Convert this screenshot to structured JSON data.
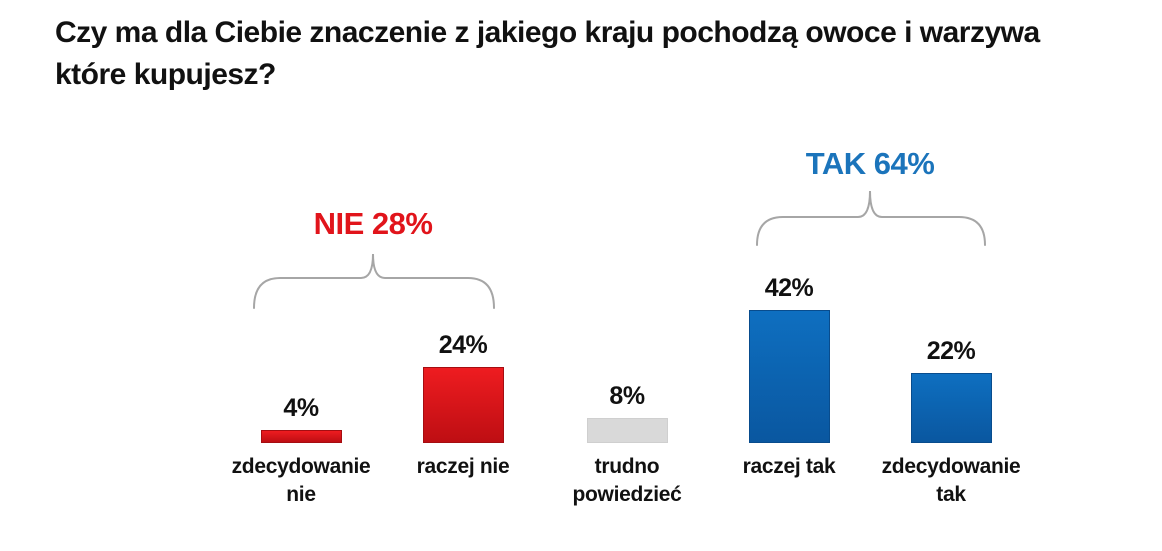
{
  "title": {
    "text": "Czy ma dla Ciebie znaczenie z jakiego kraju pochodzą owoce i warzywa które kupujesz?",
    "line1": "Czy ma dla Ciebie znaczenie z jakiego kraju pochodzą owoce i warzywa",
    "line2": "które kupujesz?"
  },
  "colors": {
    "title_text": "#111111",
    "label_text": "#111111",
    "no_accent": "#E1141B",
    "yes_accent": "#1B74BB",
    "red_bar_top": "#EE1C20",
    "red_bar_bottom": "#BE0E13",
    "red_bar_border": "#A50D11",
    "blue_bar_top": "#0E6FC0",
    "blue_bar_bottom": "#0A57A0",
    "blue_bar_border": "#084C8D",
    "gray_bar": "#D9D9D9",
    "gray_bar_border": "#CFCFCF",
    "brace": "#A6A6A6"
  },
  "chart_data": {
    "type": "bar",
    "title": "Czy ma dla Ciebie znaczenie z jakiego kraju pochodzą owoce i warzywa które kupujesz?",
    "categories": [
      "zdecydowanie nie",
      "raczej nie",
      "trudno powiedzieć",
      "raczej tak",
      "zdecydowanie tak"
    ],
    "values": [
      4,
      24,
      8,
      42,
      22
    ],
    "unit": "%",
    "value_labels": [
      "4%",
      "24%",
      "8%",
      "42%",
      "22%"
    ],
    "bar_colors": [
      "red",
      "red",
      "gray",
      "blue",
      "blue"
    ],
    "groups": [
      {
        "label": "NIE 28%",
        "value": 28,
        "color": "#E1141B",
        "bar_indexes": [
          0,
          1
        ]
      },
      {
        "label": "TAK 64%",
        "value": 64,
        "color": "#1B74BB",
        "bar_indexes": [
          3,
          4
        ]
      }
    ],
    "axes": "none",
    "grid": false,
    "legend": false,
    "ylim": [
      0,
      45
    ]
  }
}
